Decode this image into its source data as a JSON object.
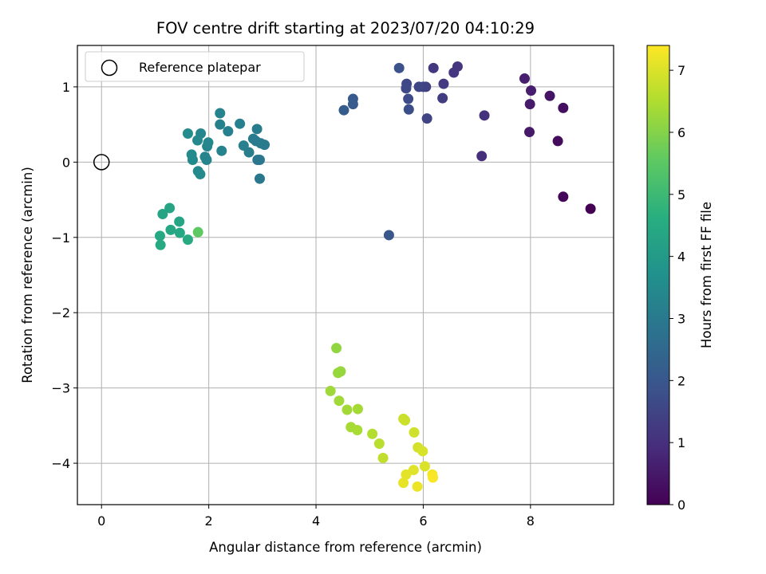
{
  "chart_data": {
    "type": "scatter",
    "title": "FOV centre drift starting at 2023/07/20 04:10:29",
    "xlabel": "Angular distance from reference (arcmin)",
    "ylabel": "Rotation from reference (arcmin)",
    "xlim": [
      -0.45,
      9.55
    ],
    "ylim": [
      -4.55,
      1.55
    ],
    "xticks": [
      0,
      2,
      4,
      6,
      8
    ],
    "yticks": [
      1,
      0,
      -1,
      -2,
      -3,
      -4
    ],
    "grid": true,
    "legend": {
      "position": "top-left",
      "entries": [
        "Reference platepar"
      ]
    },
    "reference_point": {
      "x": 0,
      "y": 0
    },
    "colorbar": {
      "label": "Hours from first FF file",
      "colormap": "viridis",
      "range": [
        0,
        7.4
      ],
      "ticks": [
        0,
        1,
        2,
        3,
        4,
        5,
        6,
        7
      ]
    },
    "points": [
      {
        "x": 9.12,
        "y": -0.62,
        "c": 0.0
      },
      {
        "x": 8.61,
        "y": -0.46,
        "c": 0.1
      },
      {
        "x": 8.51,
        "y": 0.28,
        "c": 0.2
      },
      {
        "x": 8.61,
        "y": 0.72,
        "c": 0.3
      },
      {
        "x": 8.36,
        "y": 0.88,
        "c": 0.4
      },
      {
        "x": 7.98,
        "y": 0.4,
        "c": 0.5
      },
      {
        "x": 7.99,
        "y": 0.77,
        "c": 0.55
      },
      {
        "x": 8.01,
        "y": 0.95,
        "c": 0.6
      },
      {
        "x": 7.89,
        "y": 1.11,
        "c": 0.65
      },
      {
        "x": 7.09,
        "y": 0.08,
        "c": 1.0
      },
      {
        "x": 7.14,
        "y": 0.62,
        "c": 1.05
      },
      {
        "x": 6.64,
        "y": 1.27,
        "c": 1.1
      },
      {
        "x": 6.57,
        "y": 1.19,
        "c": 1.15
      },
      {
        "x": 6.19,
        "y": 1.25,
        "c": 1.2
      },
      {
        "x": 6.38,
        "y": 1.04,
        "c": 1.25
      },
      {
        "x": 6.36,
        "y": 0.85,
        "c": 1.3
      },
      {
        "x": 6.05,
        "y": 1.0,
        "c": 1.4
      },
      {
        "x": 6.0,
        "y": 1.0,
        "c": 1.45
      },
      {
        "x": 6.07,
        "y": 0.58,
        "c": 1.5
      },
      {
        "x": 5.92,
        "y": 1.0,
        "c": 1.55
      },
      {
        "x": 5.69,
        "y": 1.04,
        "c": 1.6
      },
      {
        "x": 5.68,
        "y": 0.98,
        "c": 1.65
      },
      {
        "x": 5.72,
        "y": 0.84,
        "c": 1.7
      },
      {
        "x": 5.73,
        "y": 0.7,
        "c": 1.75
      },
      {
        "x": 5.55,
        "y": 1.25,
        "c": 1.85
      },
      {
        "x": 5.36,
        "y": -0.97,
        "c": 2.0
      },
      {
        "x": 4.69,
        "y": 0.84,
        "c": 2.05
      },
      {
        "x": 4.69,
        "y": 0.77,
        "c": 2.1
      },
      {
        "x": 4.52,
        "y": 0.69,
        "c": 2.15
      },
      {
        "x": 2.91,
        "y": 0.03,
        "c": 2.9
      },
      {
        "x": 2.95,
        "y": 0.03,
        "c": 2.92
      },
      {
        "x": 2.95,
        "y": -0.22,
        "c": 2.95
      },
      {
        "x": 3.04,
        "y": 0.23,
        "c": 3.0
      },
      {
        "x": 2.97,
        "y": 0.25,
        "c": 3.02
      },
      {
        "x": 2.88,
        "y": 0.28,
        "c": 3.05
      },
      {
        "x": 2.83,
        "y": 0.31,
        "c": 3.08
      },
      {
        "x": 2.9,
        "y": 0.44,
        "c": 3.1
      },
      {
        "x": 2.75,
        "y": 0.13,
        "c": 3.12
      },
      {
        "x": 2.65,
        "y": 0.22,
        "c": 3.15
      },
      {
        "x": 2.58,
        "y": 0.51,
        "c": 3.18
      },
      {
        "x": 2.36,
        "y": 0.41,
        "c": 3.2
      },
      {
        "x": 2.21,
        "y": 0.5,
        "c": 3.22
      },
      {
        "x": 2.21,
        "y": 0.65,
        "c": 3.25
      },
      {
        "x": 2.24,
        "y": 0.15,
        "c": 3.28
      },
      {
        "x": 1.96,
        "y": 0.03,
        "c": 3.3
      },
      {
        "x": 1.93,
        "y": 0.07,
        "c": 3.32
      },
      {
        "x": 1.97,
        "y": 0.21,
        "c": 3.35
      },
      {
        "x": 1.99,
        "y": 0.26,
        "c": 3.38
      },
      {
        "x": 1.85,
        "y": 0.38,
        "c": 3.4
      },
      {
        "x": 1.79,
        "y": 0.29,
        "c": 3.42
      },
      {
        "x": 1.8,
        "y": -0.12,
        "c": 3.45
      },
      {
        "x": 1.84,
        "y": -0.16,
        "c": 3.48
      },
      {
        "x": 1.7,
        "y": 0.03,
        "c": 3.5
      },
      {
        "x": 1.68,
        "y": 0.1,
        "c": 3.52
      },
      {
        "x": 1.61,
        "y": 0.38,
        "c": 3.55
      },
      {
        "x": 1.27,
        "y": -0.61,
        "c": 4.3
      },
      {
        "x": 1.14,
        "y": -0.69,
        "c": 4.32
      },
      {
        "x": 1.45,
        "y": -0.79,
        "c": 4.35
      },
      {
        "x": 1.29,
        "y": -0.9,
        "c": 4.38
      },
      {
        "x": 1.46,
        "y": -0.94,
        "c": 4.4
      },
      {
        "x": 1.09,
        "y": -0.98,
        "c": 4.42
      },
      {
        "x": 1.1,
        "y": -1.1,
        "c": 4.45
      },
      {
        "x": 1.61,
        "y": -1.03,
        "c": 4.5
      },
      {
        "x": 1.8,
        "y": -0.93,
        "c": 5.55
      },
      {
        "x": 4.38,
        "y": -2.47,
        "c": 6.15
      },
      {
        "x": 4.46,
        "y": -2.78,
        "c": 6.2
      },
      {
        "x": 4.41,
        "y": -2.8,
        "c": 6.22
      },
      {
        "x": 4.27,
        "y": -3.04,
        "c": 6.3
      },
      {
        "x": 4.43,
        "y": -3.17,
        "c": 6.32
      },
      {
        "x": 4.58,
        "y": -3.29,
        "c": 6.35
      },
      {
        "x": 4.78,
        "y": -3.28,
        "c": 6.38
      },
      {
        "x": 4.65,
        "y": -3.52,
        "c": 6.4
      },
      {
        "x": 4.77,
        "y": -3.56,
        "c": 6.42
      },
      {
        "x": 5.05,
        "y": -3.61,
        "c": 6.55
      },
      {
        "x": 5.18,
        "y": -3.74,
        "c": 6.62
      },
      {
        "x": 5.25,
        "y": -3.93,
        "c": 6.68
      },
      {
        "x": 5.63,
        "y": -3.41,
        "c": 6.8
      },
      {
        "x": 5.66,
        "y": -3.43,
        "c": 6.82
      },
      {
        "x": 5.83,
        "y": -3.59,
        "c": 6.88
      },
      {
        "x": 5.9,
        "y": -3.79,
        "c": 6.92
      },
      {
        "x": 5.99,
        "y": -3.84,
        "c": 6.96
      },
      {
        "x": 6.03,
        "y": -4.04,
        "c": 7.0
      },
      {
        "x": 5.82,
        "y": -4.09,
        "c": 7.05
      },
      {
        "x": 5.68,
        "y": -4.15,
        "c": 7.1
      },
      {
        "x": 5.63,
        "y": -4.26,
        "c": 7.15
      },
      {
        "x": 5.89,
        "y": -4.31,
        "c": 7.2
      },
      {
        "x": 6.17,
        "y": -4.15,
        "c": 7.3
      },
      {
        "x": 6.18,
        "y": -4.19,
        "c": 7.35
      }
    ]
  }
}
